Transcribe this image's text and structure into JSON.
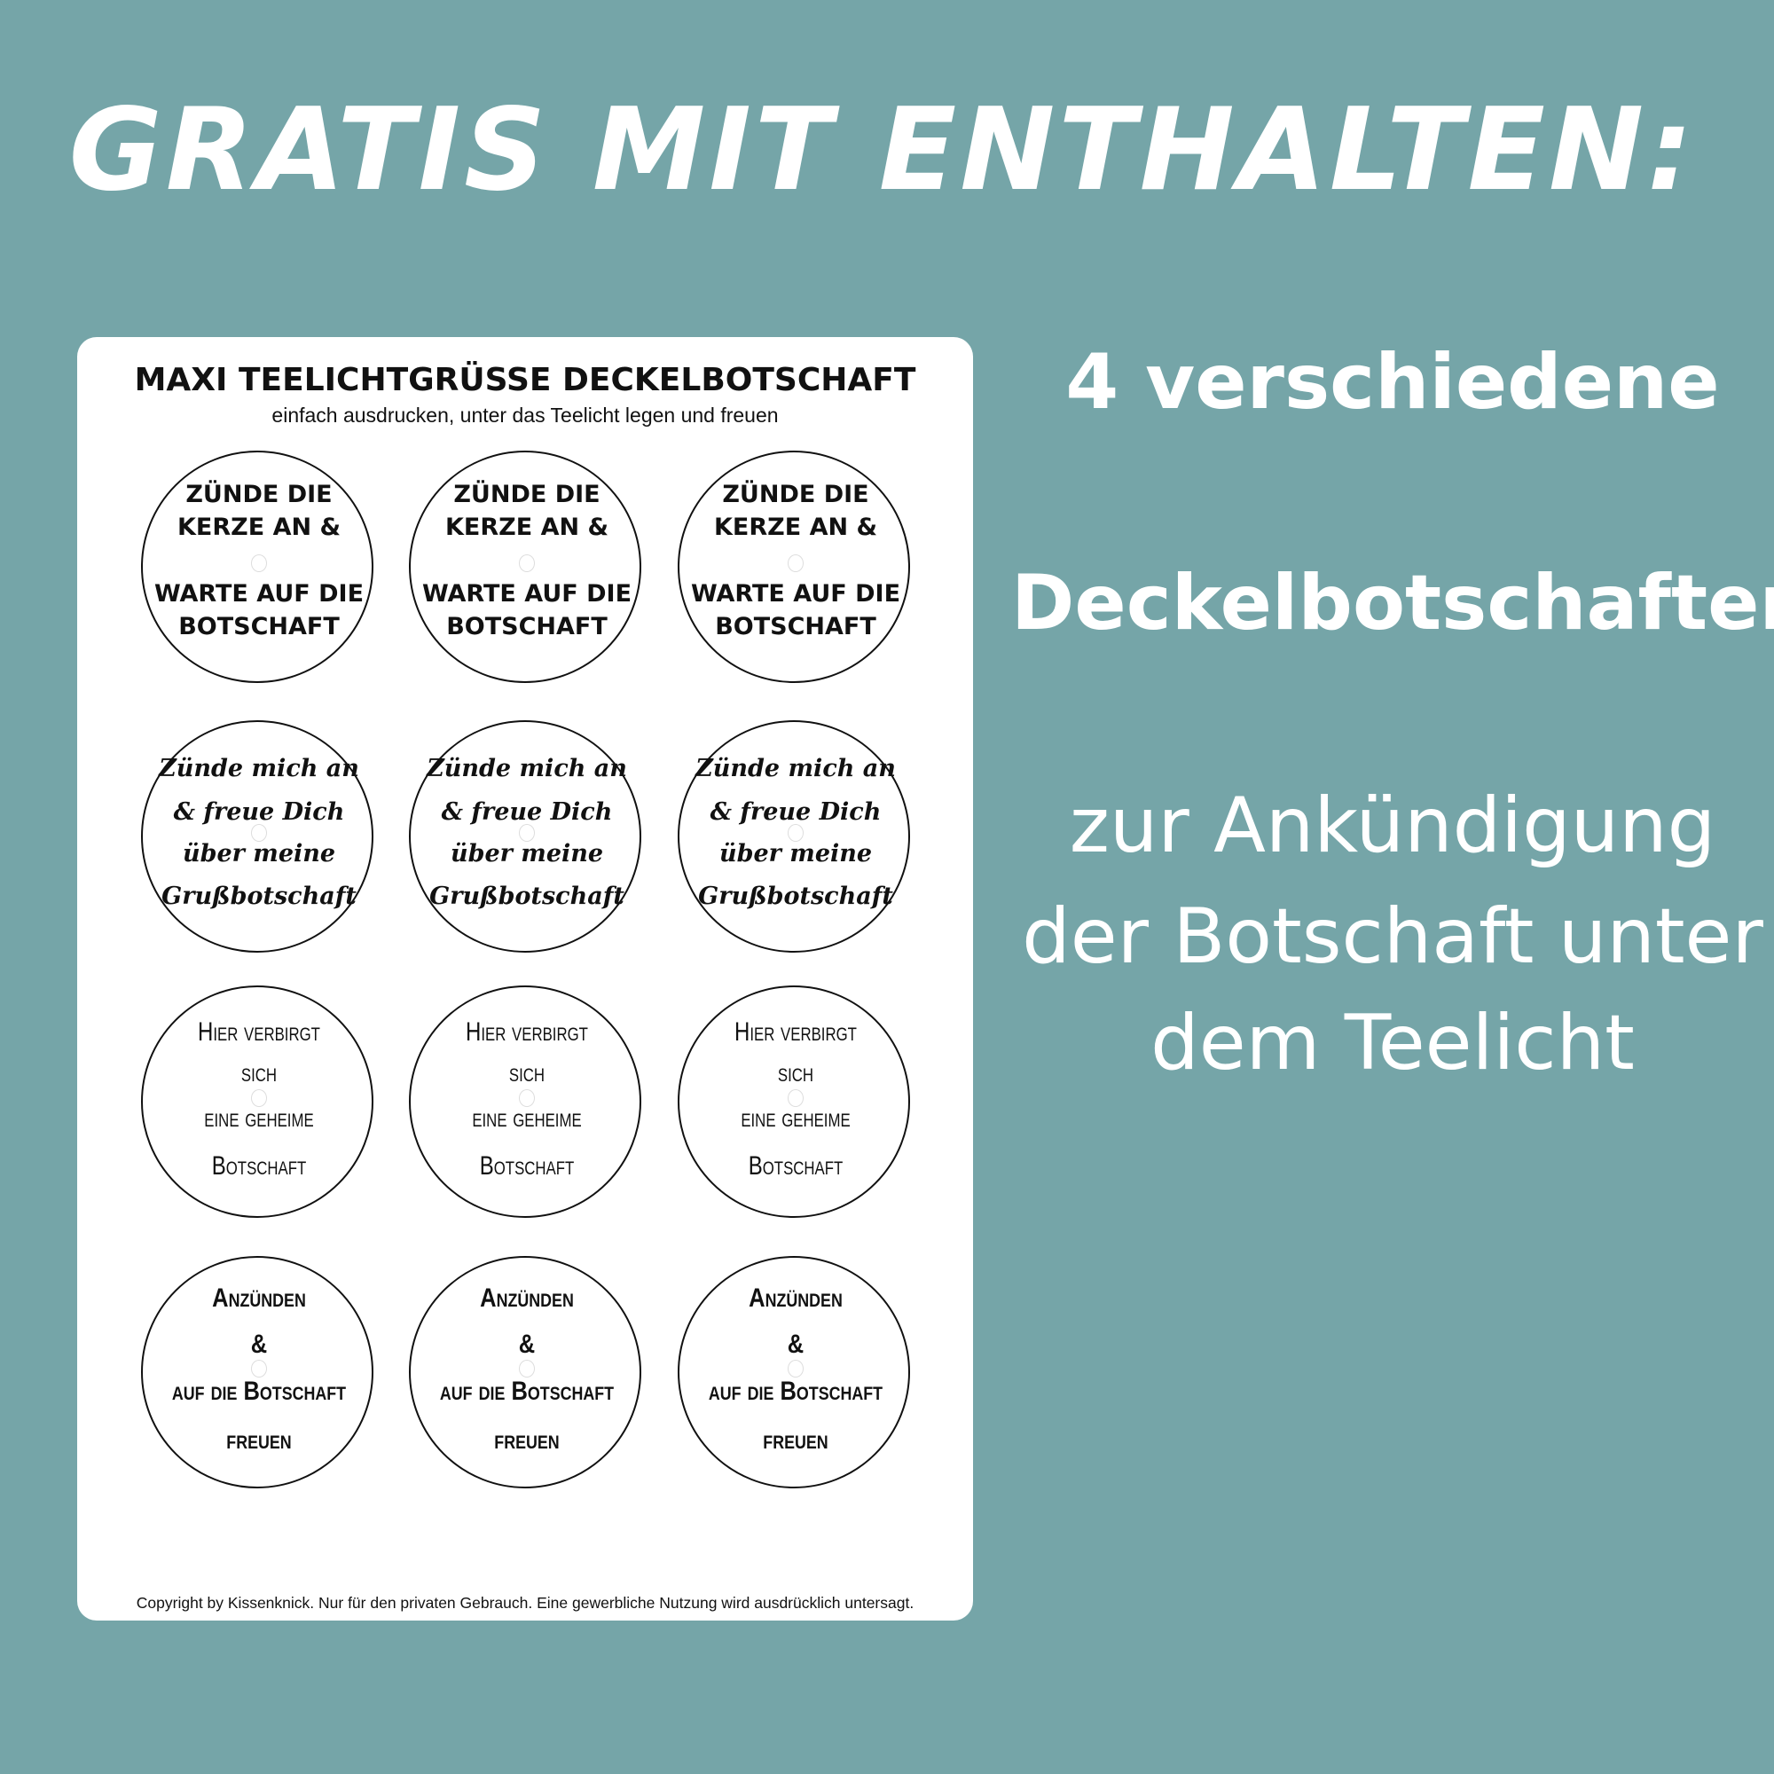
{
  "headline": "GRATIS MIT ENTHALTEN:",
  "sheet": {
    "title": "MAXI TEELICHTGRÜSSE DECKELBOTSCHAFT",
    "subtitle": "einfach ausdrucken, unter das Teelicht legen und freuen",
    "copyright": "Copyright by Kissenknick. Nur für den privaten Gebrauch. Eine gewerbliche Nutzung wird ausdrücklich untersagt.",
    "messages": [
      {
        "lines": [
          "ZÜNDE DIE",
          "KERZE AN &",
          "WARTE AUF DIE",
          "BOTSCHAFT"
        ]
      },
      {
        "lines": [
          "Zünde mich an",
          "& freue Dich",
          "über meine",
          "Grußbotschaft"
        ]
      },
      {
        "lines": [
          "Hier verbirgt",
          "sich",
          "eine geheime",
          "Botschaft"
        ]
      },
      {
        "lines": [
          "Anzünden",
          "&",
          "auf die Botschaft",
          "freuen"
        ]
      }
    ]
  },
  "right_text": {
    "line1": "4 verschiedene",
    "line2": "Deckelbotschaften",
    "line3": "zur Ankündigung",
    "line4": "der Botschaft unter",
    "line5": "dem Teelicht"
  },
  "colors": {
    "background": "#75a5a8",
    "card": "#ffffff",
    "text": "#111111"
  }
}
